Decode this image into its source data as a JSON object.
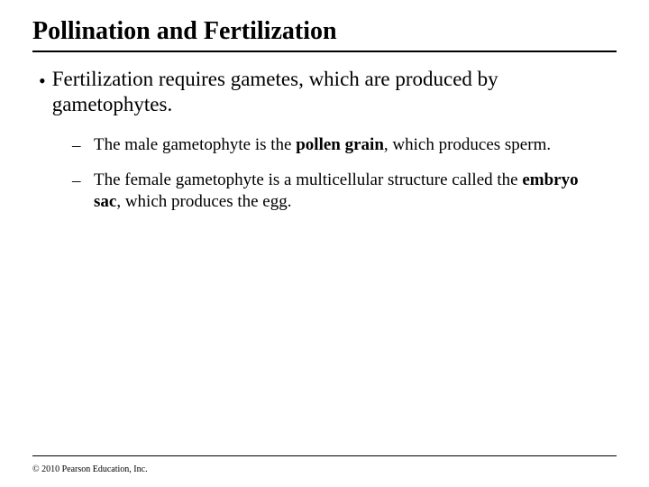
{
  "title": "Pollination and Fertilization",
  "main_bullet": {
    "marker": "•",
    "text": "Fertilization requires gametes, which are produced by gametophytes."
  },
  "sub_bullets": {
    "marker": "–",
    "items": [
      {
        "prefix": "The male gametophyte is the ",
        "bold": "pollen grain",
        "suffix": ", which produces sperm."
      },
      {
        "prefix": "The female gametophyte is a multicellular structure called the ",
        "bold": "embryo sac",
        "suffix": ", which produces the egg."
      }
    ]
  },
  "copyright": "© 2010 Pearson Education, Inc.",
  "colors": {
    "background": "#ffffff",
    "text": "#000000",
    "rule": "#000000"
  },
  "typography": {
    "title_fontsize": 28,
    "body_fontsize": 23,
    "sub_fontsize": 19,
    "copyright_fontsize": 10,
    "font_family": "Times New Roman"
  }
}
